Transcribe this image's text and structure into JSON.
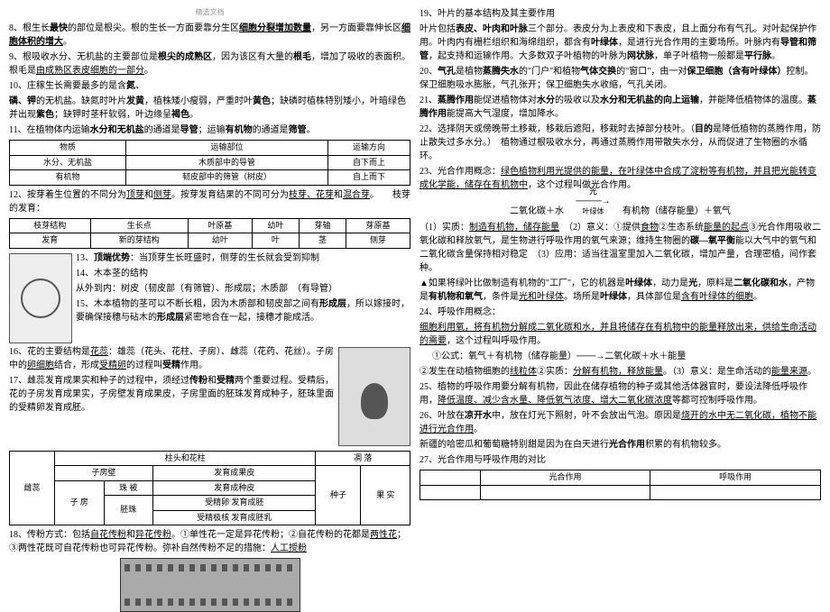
{
  "header": {
    "note": "精选文档"
  },
  "left": {
    "p8": "8、根生长<b>最快</b>的部位是根尖。根的生长一方面要靠分生区<u><b>细胞分裂增加数量</b></u>，另一方面要靠伸长区<u><b>细胞体积的增大</b></u>。",
    "p9": "9、根吸收水分、无机盐的主要部位是<b>根尖的成熟区</b>，因为该区有大量的<b>根毛</b>，增加了吸收的表面积。根毛是<u>由成熟区表皮细胞的一部分</u>。",
    "p10": "10、庄稼生长需要最多的是含<b>氮</b>、",
    "p10b": "<b>磷、钾</b>的无机盐。缺氮时叶片<b>发黄</b>，植株矮小瘦弱，严重时叶<b>黄色</b>；缺磷时植株特别矮小，叶暗绿色并出现<b>紫色</b>；缺钾时茎秆软弱，叶边缘呈<b>褐色</b>。",
    "p11": "11、在植物体内运输<b>水分和无机盐</b>的通道是<b>导管</b>；运输<b>有机物</b>的通道是<b>筛管</b>。",
    "table1": {
      "headers": [
        "物质",
        "运输部位",
        "运输方向"
      ],
      "rows": [
        [
          "水分、无机盐",
          "木质部中的导管",
          "自下而上"
        ],
        [
          "有机物",
          "韧皮部中的筛管（树皮）",
          "自上而下"
        ]
      ]
    },
    "p12": "12、按芽着生位置的不同分为<u>顶芽</u>和<u>侧芽</u>。按芽发育结果的不同可分为<u>枝芽、花芽</u>和<u>混合芽</u>。　　枝芽的发育：",
    "table2": {
      "headers": [
        "枝芽结构",
        "生长点",
        "叶原基",
        "幼叶",
        "芽轴",
        "芽原基"
      ],
      "rows": [
        [
          "发育",
          "新的芽结构",
          "幼叶",
          "叶",
          "茎",
          "侧芽"
        ]
      ]
    },
    "p13": "13、<b>顶端优势</b>：当顶芽生长旺盛时，侧芽的生长就会受到抑制",
    "p14": "14、木本茎的结构",
    "p14a": "从外到内：树皮（韧皮部（有筛管）、形成层；木质部　（有导管）",
    "p15": "15、木本植物的茎可以不断长粗，因为木质部和韧皮部之间有<b>形成层</b>，所以嫁接时，要确保接穗与砧木的<b>形成层</b>紧密地合在一起，接穗才能成活。",
    "p16": "16、花的主要结构是<u>花蕊</u>：雄蕊（花头、花柱、子房）、雌蕊（花药、花丝）。子房中的<u>卵细胞</u>结合，形成<u>受精卵</u>的过程叫<b>受精</b>作用。",
    "p17": "17、雌蕊发育成果实和种子的过程中，须经过<b>传粉</b>和<b>受精</b>两个重要过程。受精后，花的子房发育成果实，子房壁发育成果皮，子房里面的胚珠发育成种子，胚珠里面的受精卵发育成胚。",
    "table3": {
      "left_header": "雌蕊",
      "cols": [
        "柱头和花柱",
        "",
        "凋 落"
      ],
      "rows": [
        [
          "子房壁",
          "",
          "发育成果皮",
          "",
          "",
          ""
        ],
        [
          "",
          "珠 被",
          "发育成种皮",
          "",
          "",
          ""
        ],
        [
          "子 房",
          "胚珠",
          "受精卵",
          "发育成胚",
          "种子",
          "果 实"
        ],
        [
          "",
          "",
          "受精极核",
          "发育成胚乳",
          "",
          ""
        ]
      ]
    },
    "p18": "18、传粉方式：包括<u>自花传粉</u>和<u>异花传粉</u>。①单性花一定是异花传粉；②自花传粉的花都是<u>两性花</u>；③两性花既可自花传粉也可异花传粉。弥补自然传粉不足的措施：<u>人工授粉</u>"
  },
  "right": {
    "p19": "19、叶片的基本结构及其主要作用",
    "p19a": "叶片包括<b>表皮、叶肉和叶脉</b>三个部分。表皮分为上表皮和下表皮，且上面分布有气孔。对叶起保护作用。叶肉内有栅栏组织和海绵组织，都含有<b>叶绿体</b>，是进行光合作用的主要场所。叶脉内有<b>导管和筛管</b>，起支持和运输作用。大多数双子叶植物的叶脉为<b>网状脉</b>，单子叶植物一般都是<b>平行脉</b>。",
    "p20": "20、<b>气孔</b>是植物<b>蒸腾失水</b>的\"门户\"和植物<b>气体交换</b>的\"窗口\"，由一对<b>保卫细胞（含有叶绿体）</b>控制。保卫细胞吸水膨胀，气孔张开；保卫细胞失水收缩，气孔关闭。",
    "p21": "21、<b>蒸腾作用</b>能促进植物体对<b>水分</b>的吸收以及<b>水分和无机盐的向上运输</b>，并能降低植物体的温度。<b>蒸腾作用</b>能提高大气湿度，增加降水。",
    "p22": "22、选择阴天或傍晚带土移栽，移栽后遮阳，移栽时去掉部分枝叶。（<b>目的</b>是降低植物的蒸腾作用，防止散失过多水分。）　植物通过根吸收水分，再通过蒸腾作用带散失水分，从而促进了生物圈的水循环。",
    "p23": "23、光合作用概念：<u>绿色植物利用光提供的能量，在叶绿体中合成了淀粉等有机物，并且把光能转变成化学能，储存在有机物中</u>，这个过程叫做光合作用。",
    "formula": {
      "left": "二氧化碳＋水",
      "top": "光",
      "bottom": "叶绿体",
      "right": "有机物（储存能量）＋氧气"
    },
    "p23a": "（1）实质：<u>制造有机物，储存能量</u>　（2）意义：①提供<u>食物</u>②生态系统<u>能量的起点</u>③光合作用吸收二氧化碳和释放氧气，是生物进行呼吸作用的氧气来源；维持生物圈的<b>碳—氧平衡</b>能以大气中的氧气和二氧化碳含量保持相对稳定　（3）应用：适当往温室里加入二氧化碳，增加产量，合理密植，间作套种。",
    "p23b": "▲如果将绿叶比做制造有机物的\"工厂\"，它的机器是<b>叶绿体</b>，动力是<b>光</b>，原料是<b>二氧化碳和水</b>，产物是<b>有机物和氧气</b>，条件是<u>光和叶绿体</u>。场所是<b>叶绿体</b>，具体部位是<u>含有叶绿体的细胞</u>。",
    "p24": "24、呼吸作用概念：",
    "p24a": "<u>细胞利用氧，将有机物分解成二氧化碳和水，并且将储存在有机物中的能量释放出来，供给生命活动的需要</u>，这个过程叫呼吸作用。",
    "p24b": "①公式：氧气＋有机物（储存能量）<b>───→</b>二氧化碳＋水＋能量",
    "p24c": "②发生在动植物细胞的<u>线粒体</u>②实质：<u>分解有机物，释放能量</u>。（3）意义：是生命活动的<u>能量来源</u>。",
    "p25": "25、植物的呼吸作用要分解有机物，因此在储存植物的种子或其他活体器官时，要设法降低呼吸作用，<u>降低温度、减少含水量、降低氧气浓度、增大二氧化碳浓度</u>等都可控制呼吸作用。",
    "p26": "26、叶放在<b>凉开水</b>中，放在灯光下照射，叶不会放出气泡。原因是<u>烧开的水中无二氧化碳，植物不能进行光合作用</u>。",
    "p26a": "新疆的哈密瓜和葡萄糖特别甜是因为在白天进行<b>光合作用</b>积累的有机物较多。",
    "p27": "27、光合作用与呼吸作用的对比",
    "table4": {
      "headers": [
        "",
        "光合作用",
        "呼吸作用"
      ]
    }
  }
}
